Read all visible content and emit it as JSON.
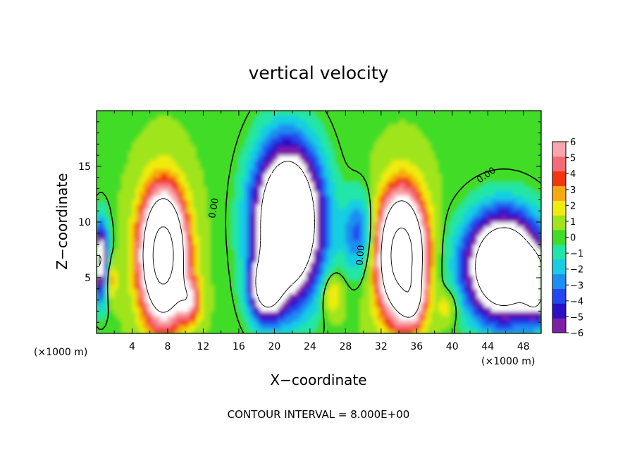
{
  "chart_data": {
    "type": "heatmap",
    "title": "vertical velocity",
    "xlabel": "X−coordinate",
    "ylabel": "Z−coordinate",
    "x_unit_left": "(×1000 m)",
    "x_unit_right": "(×1000 m)",
    "xlim": [
      0,
      50
    ],
    "ylim": [
      0,
      20
    ],
    "x_ticks": [
      "4",
      "8",
      "12",
      "16",
      "20",
      "24",
      "28",
      "32",
      "36",
      "40",
      "44",
      "48"
    ],
    "y_ticks": [
      "5",
      "10",
      "15"
    ],
    "colorbar": {
      "min": -6,
      "max": 6,
      "ticks": [
        "6",
        "5",
        "4",
        "3",
        "2",
        "1",
        "0",
        "−1",
        "−2",
        "−3",
        "−4",
        "−5",
        "−6"
      ],
      "colors": [
        "#7e1fa8",
        "#2b10c8",
        "#2348ef",
        "#1e8ef2",
        "#18cde3",
        "#20e6a6",
        "#3fdc28",
        "#a0e41a",
        "#f0ec10",
        "#f7a90e",
        "#f2360e",
        "#f56a74",
        "#f8a6ac"
      ],
      "saturated_color": "#ffffff"
    },
    "contour_labels": [
      "0.00",
      "0.00",
      "0.00"
    ],
    "contour_interval_text": "CONTOUR INTERVAL = 8.000E+00",
    "features": [
      {
        "kind": "updraft",
        "x": 7.5,
        "z": 7.5,
        "peak": 20
      },
      {
        "kind": "updraft",
        "x": 34.0,
        "z": 7.0,
        "peak": 20
      },
      {
        "kind": "downdraft",
        "x": 21.5,
        "z": 9.0,
        "peak": -16
      },
      {
        "kind": "downdraft",
        "x": 45.5,
        "z": 5.5,
        "peak": -14
      }
    ]
  }
}
